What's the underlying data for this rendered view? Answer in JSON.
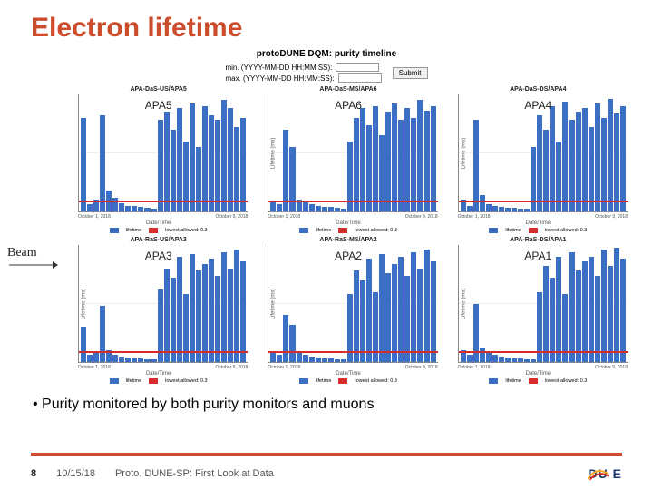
{
  "title": "Electron lifetime",
  "header": {
    "subtitle": "protoDUNE DQM: purity timeline",
    "min_label": "min. (YYYY-MM-DD HH:MM:SS):",
    "max_label": "max. (YYYY-MM-DD HH:MM:SS):",
    "submit_label": "Submit"
  },
  "charts": {
    "layout": {
      "rows": 2,
      "cols": 3
    },
    "ylabel": "Lifetime (ms)",
    "xlabel": "Date/Time",
    "xticks": [
      "October 1, 2018",
      "October 9, 2018"
    ],
    "legend": [
      {
        "label": "lifetime",
        "color": "#3b6fc4"
      },
      {
        "label": "lowest allowed: 0.3",
        "color": "#d62c2c"
      }
    ],
    "redline_color": "#d62c2c",
    "bar_color": "#3b6fc4",
    "panel_title_color": "#222222",
    "grid_color": "#e0e0e0",
    "panels": [
      {
        "title": "APA-DaS-US/APA5",
        "apa": "APA5",
        "bars": [
          0.8,
          0.06,
          0.1,
          0.82,
          0.18,
          0.12,
          0.07,
          0.05,
          0.05,
          0.04,
          0.03,
          0.02,
          0.78,
          0.85,
          0.7,
          0.88,
          0.6,
          0.92,
          0.55,
          0.9,
          0.82,
          0.78,
          0.95,
          0.88,
          0.72,
          0.8
        ]
      },
      {
        "title": "APA-DaS-MS/APA6",
        "apa": "APA6",
        "bars": [
          0.08,
          0.06,
          0.7,
          0.55,
          0.1,
          0.08,
          0.06,
          0.05,
          0.04,
          0.04,
          0.03,
          0.02,
          0.6,
          0.8,
          0.88,
          0.74,
          0.9,
          0.65,
          0.85,
          0.92,
          0.78,
          0.88,
          0.8,
          0.95,
          0.86,
          0.9
        ]
      },
      {
        "title": "APA-DaS-DS/APA4",
        "apa": "APA4",
        "bars": [
          0.1,
          0.05,
          0.78,
          0.14,
          0.06,
          0.05,
          0.04,
          0.03,
          0.03,
          0.02,
          0.02,
          0.55,
          0.82,
          0.7,
          0.9,
          0.6,
          0.94,
          0.78,
          0.85,
          0.88,
          0.72,
          0.92,
          0.8,
          0.96,
          0.84,
          0.9
        ]
      },
      {
        "title": "APA-RaS-US/APA3",
        "apa": "APA3",
        "bars": [
          0.3,
          0.06,
          0.08,
          0.48,
          0.1,
          0.06,
          0.05,
          0.04,
          0.03,
          0.03,
          0.02,
          0.02,
          0.62,
          0.8,
          0.72,
          0.9,
          0.58,
          0.92,
          0.78,
          0.84,
          0.88,
          0.74,
          0.94,
          0.8,
          0.96,
          0.86
        ]
      },
      {
        "title": "APA-RaS-MS/APA2",
        "apa": "APA2",
        "bars": [
          0.08,
          0.06,
          0.4,
          0.32,
          0.08,
          0.06,
          0.05,
          0.04,
          0.03,
          0.03,
          0.02,
          0.02,
          0.58,
          0.78,
          0.7,
          0.88,
          0.6,
          0.92,
          0.76,
          0.84,
          0.9,
          0.74,
          0.94,
          0.8,
          0.96,
          0.86
        ]
      },
      {
        "title": "APA-RaS-DS/APA1",
        "apa": "APA1",
        "bars": [
          0.1,
          0.06,
          0.5,
          0.12,
          0.08,
          0.06,
          0.05,
          0.04,
          0.03,
          0.03,
          0.02,
          0.02,
          0.6,
          0.82,
          0.72,
          0.9,
          0.58,
          0.94,
          0.78,
          0.86,
          0.9,
          0.74,
          0.96,
          0.82,
          0.98,
          0.88
        ]
      }
    ]
  },
  "beam_label": "Beam",
  "bullet": "Purity monitored by both purity monitors and muons",
  "footer": {
    "page": "8",
    "date": "10/15/18",
    "talk": "Proto. DUNE-SP: First Look at Data",
    "logo_text": "DU E",
    "logo_colors": {
      "text": "#1a3a6e",
      "swoosh1": "#f5a623",
      "swoosh2": "#d62c2c"
    }
  },
  "colors": {
    "title": "#cc4c2b",
    "rule": "#cc4c2b"
  }
}
